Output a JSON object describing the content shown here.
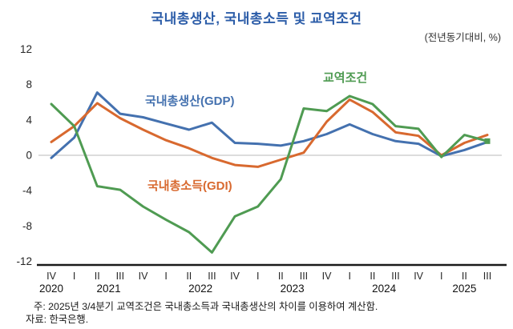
{
  "title": "국내총생산, 국내총소득 및 교역조건",
  "unit_label": "(전년동기대비, %)",
  "notes": [
    "주: 2025년 3/4분기 교역조건은 국내총소득과 국내총생산의 차이를 이용하여 계산함.",
    "자료: 한국은행."
  ],
  "colors": {
    "title_blue": "#2b5ca8",
    "gdp_line": "#4471af",
    "gdi_line": "#d8692f",
    "tot_line": "#4f9b52",
    "zero_gridline": "#c8c8c8",
    "axis_line": "#1a1a1a",
    "tick_text": "#262626"
  },
  "chart_data": {
    "type": "line",
    "title": "국내총생산, 국내총소득 및 교역조건",
    "unit": "전년동기대비, %",
    "ylim": [
      -12,
      12
    ],
    "yticks": [
      12,
      8,
      4,
      0,
      -4,
      -8,
      -12
    ],
    "grid": "horizontal-zero-line-only",
    "x_labels": [
      "IV",
      "I",
      "II",
      "III",
      "IV",
      "I",
      "II",
      "III",
      "IV",
      "I",
      "II",
      "III",
      "IV",
      "I",
      "II",
      "III",
      "IV",
      "I",
      "II",
      "III"
    ],
    "year_groups": [
      {
        "label": "2020",
        "from": 0,
        "to": 0
      },
      {
        "label": "2021",
        "from": 1,
        "to": 4
      },
      {
        "label": "2022",
        "from": 5,
        "to": 8
      },
      {
        "label": "2023",
        "from": 9,
        "to": 12
      },
      {
        "label": "2024",
        "from": 13,
        "to": 16
      },
      {
        "label": "2025",
        "from": 17,
        "to": 19
      }
    ],
    "series": [
      {
        "name": "국내총생산(GDP)",
        "color": "#4471af",
        "values": [
          -0.3,
          2.0,
          7.1,
          4.7,
          4.3,
          3.6,
          2.9,
          3.7,
          1.4,
          1.3,
          1.1,
          1.6,
          2.4,
          3.5,
          2.4,
          1.6,
          1.3,
          -0.1,
          0.6,
          1.5
        ],
        "end_marker": "none"
      },
      {
        "name": "국내총소득(GDI)",
        "color": "#d8692f",
        "values": [
          1.5,
          3.3,
          5.9,
          4.2,
          2.9,
          1.7,
          0.8,
          -0.3,
          -1.1,
          -1.3,
          -0.5,
          0.3,
          3.8,
          6.3,
          4.9,
          2.6,
          2.2,
          0.0,
          1.4,
          2.3
        ],
        "end_marker": "none"
      },
      {
        "name": "교역조건",
        "color": "#4f9b52",
        "values": [
          5.8,
          3.3,
          -3.5,
          -3.9,
          -5.8,
          -7.3,
          -8.7,
          -11.0,
          -6.9,
          -5.8,
          -2.7,
          5.3,
          5.0,
          6.7,
          5.8,
          3.3,
          3.0,
          -0.2,
          2.3,
          1.6
        ],
        "end_marker": "square"
      }
    ]
  }
}
